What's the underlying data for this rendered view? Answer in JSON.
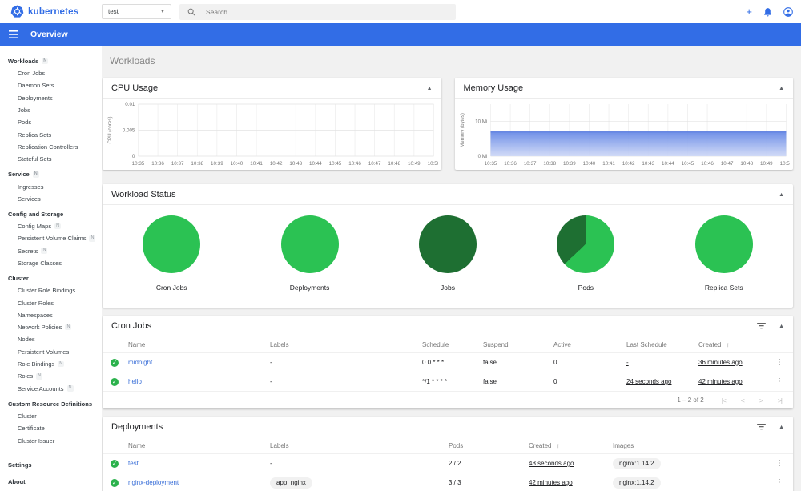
{
  "header": {
    "logo_text": "kubernetes",
    "namespace_value": "test",
    "search_placeholder": "Search",
    "icons": [
      "add",
      "notifications",
      "account"
    ]
  },
  "toolbar": {
    "title": "Overview"
  },
  "sidebar": {
    "badge_letter": "N",
    "sections": [
      {
        "label": "Workloads",
        "badge": true,
        "clickable": true,
        "items": [
          {
            "label": "Cron Jobs"
          },
          {
            "label": "Daemon Sets"
          },
          {
            "label": "Deployments"
          },
          {
            "label": "Jobs"
          },
          {
            "label": "Pods"
          },
          {
            "label": "Replica Sets"
          },
          {
            "label": "Replication Controllers"
          },
          {
            "label": "Stateful Sets"
          }
        ]
      },
      {
        "label": "Service",
        "badge": true,
        "clickable": true,
        "items": [
          {
            "label": "Ingresses"
          },
          {
            "label": "Services"
          }
        ]
      },
      {
        "label": "Config and Storage",
        "badge": false,
        "clickable": false,
        "items": [
          {
            "label": "Config Maps",
            "badge": true
          },
          {
            "label": "Persistent Volume Claims",
            "badge": true
          },
          {
            "label": "Secrets",
            "badge": true
          },
          {
            "label": "Storage Classes"
          }
        ]
      },
      {
        "label": "Cluster",
        "badge": false,
        "clickable": false,
        "items": [
          {
            "label": "Cluster Role Bindings"
          },
          {
            "label": "Cluster Roles"
          },
          {
            "label": "Namespaces"
          },
          {
            "label": "Network Policies",
            "badge": true
          },
          {
            "label": "Nodes"
          },
          {
            "label": "Persistent Volumes"
          },
          {
            "label": "Role Bindings",
            "badge": true
          },
          {
            "label": "Roles",
            "badge": true
          },
          {
            "label": "Service Accounts",
            "badge": true
          }
        ]
      },
      {
        "label": "Custom Resource Definitions",
        "badge": false,
        "clickable": false,
        "items": [
          {
            "label": "Cluster"
          },
          {
            "label": "Certificate"
          },
          {
            "label": "Cluster Issuer"
          }
        ]
      }
    ],
    "footer_items": [
      {
        "label": "Settings"
      },
      {
        "label": "About"
      }
    ]
  },
  "page_title": "Workloads",
  "colors": {
    "accent_blue": "#326de6",
    "link_blue": "#3a6fd8",
    "success_green": "#2bb24c",
    "pie_green": "#2bc253",
    "pie_dark_green": "#1e6f32",
    "memory_area_top": "#688ae6",
    "memory_area_bottom": "#cdd7f6"
  },
  "chart_data": [
    {
      "type": "line",
      "title": "CPU Usage",
      "ylabel": "CPU (cores)",
      "x": [
        "10:35",
        "10:36",
        "10:37",
        "10:38",
        "10:39",
        "10:40",
        "10:41",
        "10:42",
        "10:43",
        "10:44",
        "10:45",
        "10:46",
        "10:47",
        "10:48",
        "10:49",
        "10:50"
      ],
      "ylim": [
        0,
        0.01
      ],
      "yticks": [
        {
          "value": 0,
          "label": "0"
        },
        {
          "value": 0.005,
          "label": "0.005"
        },
        {
          "value": 0.01,
          "label": "0.01"
        }
      ],
      "grid": true,
      "series": [
        {
          "name": "CPU",
          "values": [
            0,
            0,
            0,
            0,
            0,
            0,
            0,
            0,
            0,
            0,
            0,
            0,
            0,
            0,
            0,
            0
          ]
        }
      ]
    },
    {
      "type": "area",
      "title": "Memory Usage",
      "ylabel": "Memory (bytes)",
      "x": [
        "10:35",
        "10:36",
        "10:37",
        "10:38",
        "10:39",
        "10:40",
        "10:41",
        "10:42",
        "10:43",
        "10:44",
        "10:45",
        "10:46",
        "10:47",
        "10:48",
        "10:49",
        "10:50"
      ],
      "ylim": [
        0,
        15
      ],
      "yticks": [
        {
          "value": 0,
          "label": "0 Mi"
        },
        {
          "value": 10,
          "label": "10 Mi"
        }
      ],
      "grid": true,
      "series": [
        {
          "name": "Memory",
          "values": [
            7,
            7,
            7,
            7,
            7,
            7,
            7,
            7,
            7,
            7,
            7,
            7,
            7,
            7,
            7,
            7
          ]
        }
      ]
    },
    {
      "type": "pie",
      "title": "Workload Status",
      "pies": [
        {
          "label": "Cron Jobs",
          "slices": [
            {
              "color": "#2bc253",
              "fraction": 1
            }
          ]
        },
        {
          "label": "Deployments",
          "slices": [
            {
              "color": "#2bc253",
              "fraction": 1
            }
          ]
        },
        {
          "label": "Jobs",
          "slices": [
            {
              "color": "#1e6f32",
              "fraction": 1
            }
          ]
        },
        {
          "label": "Pods",
          "slices": [
            {
              "color": "#2bc253",
              "fraction": 0.63
            },
            {
              "color": "#1e6f32",
              "fraction": 0.37
            }
          ]
        },
        {
          "label": "Replica Sets",
          "slices": [
            {
              "color": "#2bc253",
              "fraction": 1
            }
          ]
        }
      ]
    }
  ],
  "cron_jobs": {
    "title": "Cron Jobs",
    "columns": [
      "Name",
      "Labels",
      "Schedule",
      "Suspend",
      "Active",
      "Last Schedule",
      "Created"
    ],
    "sort_column": "Created",
    "rows": [
      {
        "status": "ok",
        "name": "midnight",
        "labels": "-",
        "schedule": "0 0 * * *",
        "suspend": "false",
        "active": "0",
        "last_schedule": "-",
        "created": "36 minutes ago"
      },
      {
        "status": "ok",
        "name": "hello",
        "labels": "-",
        "schedule": "*/1 * * * *",
        "suspend": "false",
        "active": "0",
        "last_schedule": "24 seconds ago",
        "created": "42 minutes ago"
      }
    ],
    "pagination": {
      "range_text": "1 – 2 of 2",
      "buttons": [
        "|<",
        "<",
        ">",
        ">|"
      ]
    }
  },
  "deployments": {
    "title": "Deployments",
    "columns": [
      "Name",
      "Labels",
      "Pods",
      "Created",
      "Images"
    ],
    "sort_column": "Created",
    "rows": [
      {
        "status": "ok",
        "name": "test",
        "labels": "-",
        "labels_chip": false,
        "pods": "2 / 2",
        "created": "48 seconds ago",
        "images": "nginx:1.14.2"
      },
      {
        "status": "ok",
        "name": "nginx-deployment",
        "labels": "app: nginx",
        "labels_chip": true,
        "pods": "3 / 3",
        "created": "42 minutes ago",
        "images": "nginx:1.14.2"
      }
    ]
  }
}
